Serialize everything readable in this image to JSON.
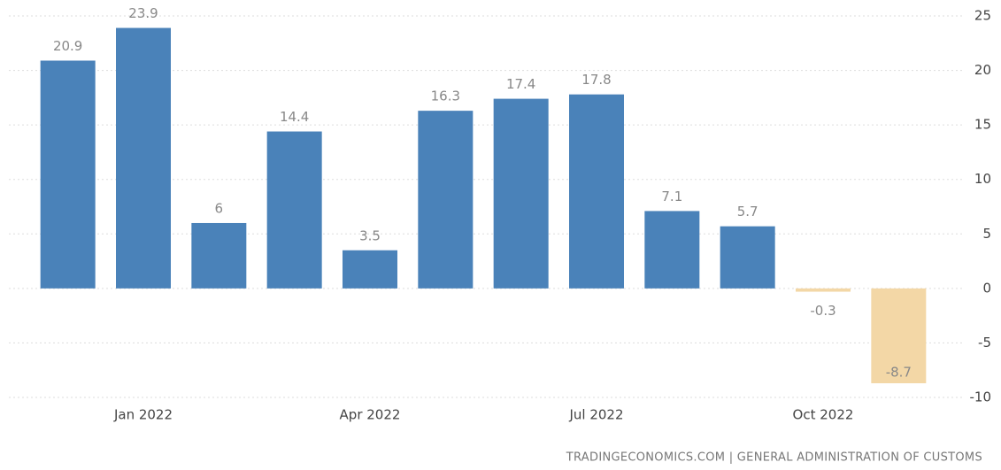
{
  "chart_data": {
    "type": "bar",
    "source": "TRADINGECONOMICS.COM | GENERAL ADMINISTRATION OF CUSTOMS",
    "categories": [
      null,
      "Jan 2022",
      null,
      null,
      "Apr 2022",
      null,
      null,
      "Jul 2022",
      null,
      null,
      "Oct 2022",
      null
    ],
    "values": [
      20.9,
      23.9,
      6,
      14.4,
      3.5,
      16.3,
      17.4,
      17.8,
      7.1,
      5.7,
      -0.3,
      -8.7
    ],
    "color": "#4a82b9",
    "negative_color": "#f3d7a6",
    "ylim": [
      -10,
      25
    ],
    "yticks": [
      -10,
      -5,
      0,
      5,
      10,
      15,
      20,
      25
    ],
    "grid": true,
    "y_axis_side": "right"
  }
}
